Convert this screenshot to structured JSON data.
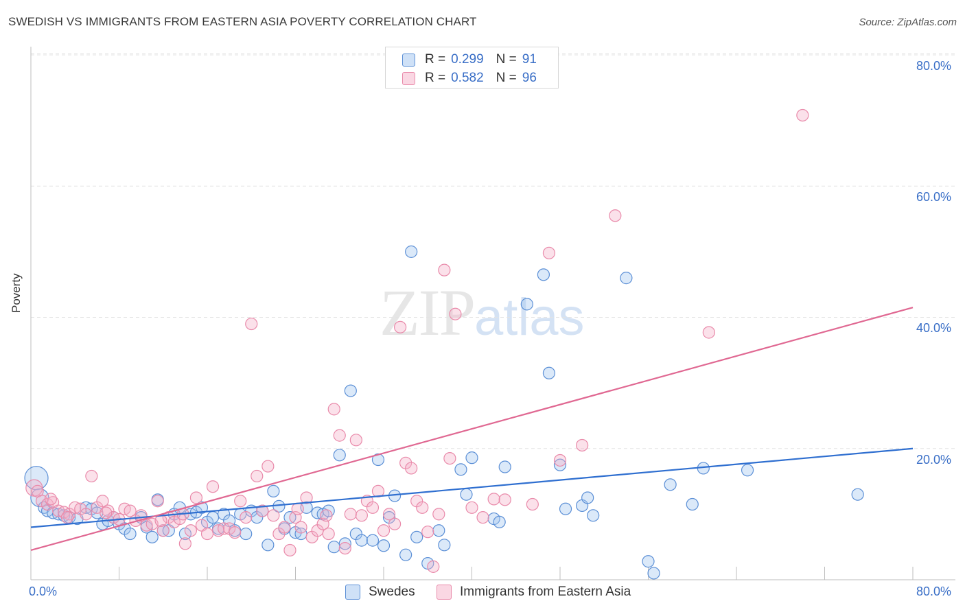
{
  "title": "SWEDISH VS IMMIGRANTS FROM EASTERN ASIA POVERTY CORRELATION CHART",
  "source": "Source: ZipAtlas.com",
  "watermark": {
    "zip": "ZIP",
    "atlas": "atlas"
  },
  "colors": {
    "swedes_fill": "rgba(160,196,240,0.38)",
    "swedes_stroke": "#5b8fd6",
    "swedes_line": "#2f6fd0",
    "asia_fill": "rgba(245,175,200,0.38)",
    "asia_stroke": "#e98aaa",
    "asia_line": "#e06892",
    "tick_color": "#3a6fc7",
    "grid": "#e3e3e3"
  },
  "legend_top": {
    "rows": [
      {
        "r_label": "R =",
        "r_value": "0.299",
        "n_label": "N =",
        "n_value": "91"
      },
      {
        "r_label": "R =",
        "r_value": "0.582",
        "n_label": "N =",
        "n_value": "96"
      }
    ]
  },
  "legend_bottom": {
    "swedes": "Swedes",
    "asia": "Immigrants from Eastern Asia"
  },
  "axes": {
    "ylabel": "Poverty",
    "x_tick_left": "0.0%",
    "x_tick_right": "80.0%",
    "y_ticks": [
      "80.0%",
      "60.0%",
      "40.0%",
      "20.0%"
    ]
  },
  "chart_data": {
    "type": "scatter",
    "title": "SWEDISH VS IMMIGRANTS FROM EASTERN ASIA POVERTY CORRELATION CHART",
    "xlabel": "",
    "ylabel": "Poverty",
    "xlim": [
      0,
      80
    ],
    "ylim": [
      0,
      80
    ],
    "grid": true,
    "legend_placement": "bottom",
    "series": [
      {
        "name": "Swedes",
        "r": 0.299,
        "n": 91,
        "trend": {
          "x": [
            0,
            80
          ],
          "y": [
            8.0,
            20.0
          ]
        },
        "points": [
          [
            0.5,
            15.5
          ],
          [
            0.8,
            12.5
          ],
          [
            1.2,
            11.0
          ],
          [
            1.5,
            10.5
          ],
          [
            2.0,
            10.2
          ],
          [
            2.5,
            10.0
          ],
          [
            3.0,
            9.8
          ],
          [
            3.5,
            9.5
          ],
          [
            4.2,
            9.3
          ],
          [
            5.0,
            11.0
          ],
          [
            5.5,
            10.8
          ],
          [
            6.0,
            10.2
          ],
          [
            6.5,
            8.5
          ],
          [
            7.0,
            9.0
          ],
          [
            7.5,
            9.5
          ],
          [
            8.0,
            8.5
          ],
          [
            8.5,
            7.8
          ],
          [
            9.0,
            7.0
          ],
          [
            10.0,
            9.5
          ],
          [
            10.5,
            8.0
          ],
          [
            11.0,
            6.5
          ],
          [
            11.5,
            12.2
          ],
          [
            12.0,
            7.5
          ],
          [
            12.5,
            7.5
          ],
          [
            13.0,
            10.0
          ],
          [
            13.5,
            11.0
          ],
          [
            14.0,
            7.0
          ],
          [
            14.5,
            10.0
          ],
          [
            15.0,
            10.3
          ],
          [
            15.5,
            11.0
          ],
          [
            16.0,
            8.8
          ],
          [
            16.5,
            9.5
          ],
          [
            17.0,
            7.8
          ],
          [
            17.5,
            10.0
          ],
          [
            18.0,
            9.0
          ],
          [
            18.5,
            7.5
          ],
          [
            19.0,
            10.0
          ],
          [
            19.5,
            7.0
          ],
          [
            20.0,
            10.5
          ],
          [
            20.5,
            9.5
          ],
          [
            21.0,
            10.5
          ],
          [
            21.5,
            5.3
          ],
          [
            22.0,
            13.5
          ],
          [
            22.5,
            11.2
          ],
          [
            23.0,
            7.8
          ],
          [
            23.5,
            9.5
          ],
          [
            24.0,
            7.2
          ],
          [
            24.5,
            7.0
          ],
          [
            25.0,
            11.0
          ],
          [
            26.0,
            10.2
          ],
          [
            26.5,
            10.0
          ],
          [
            27.0,
            10.5
          ],
          [
            27.5,
            5.0
          ],
          [
            28.0,
            19.0
          ],
          [
            28.5,
            5.5
          ],
          [
            29.0,
            28.8
          ],
          [
            29.5,
            7.0
          ],
          [
            30.0,
            6.0
          ],
          [
            31.0,
            6.0
          ],
          [
            31.5,
            18.3
          ],
          [
            32.0,
            5.2
          ],
          [
            32.5,
            9.5
          ],
          [
            33.0,
            12.8
          ],
          [
            34.0,
            3.8
          ],
          [
            34.5,
            50.0
          ],
          [
            35.0,
            6.5
          ],
          [
            36.0,
            2.5
          ],
          [
            37.0,
            7.5
          ],
          [
            37.5,
            5.3
          ],
          [
            39.0,
            16.8
          ],
          [
            39.5,
            13.0
          ],
          [
            40.0,
            18.6
          ],
          [
            42.0,
            9.3
          ],
          [
            42.5,
            8.8
          ],
          [
            43.0,
            17.2
          ],
          [
            45.0,
            42.0
          ],
          [
            46.5,
            46.5
          ],
          [
            47.0,
            31.5
          ],
          [
            48.0,
            17.5
          ],
          [
            48.5,
            10.8
          ],
          [
            50.0,
            11.3
          ],
          [
            50.5,
            12.5
          ],
          [
            51.0,
            9.8
          ],
          [
            54.0,
            46.0
          ],
          [
            56.0,
            2.8
          ],
          [
            56.5,
            1.0
          ],
          [
            58.0,
            14.5
          ],
          [
            60.0,
            11.5
          ],
          [
            65.0,
            16.7
          ],
          [
            75.0,
            13.0
          ],
          [
            61.0,
            17.0
          ]
        ]
      },
      {
        "name": "Immigrants from Eastern Asia",
        "r": 0.582,
        "n": 96,
        "trend": {
          "x": [
            0,
            80
          ],
          "y": [
            4.5,
            41.5
          ]
        },
        "points": [
          [
            0.3,
            14.0
          ],
          [
            0.6,
            13.5
          ],
          [
            1.0,
            12.0
          ],
          [
            1.5,
            11.5
          ],
          [
            2.0,
            11.8
          ],
          [
            2.5,
            10.5
          ],
          [
            3.0,
            10.3
          ],
          [
            3.5,
            10.0
          ],
          [
            4.0,
            11.0
          ],
          [
            4.5,
            10.8
          ],
          [
            5.0,
            10.0
          ],
          [
            5.5,
            15.8
          ],
          [
            6.0,
            11.0
          ],
          [
            6.5,
            12.0
          ],
          [
            7.0,
            10.5
          ],
          [
            7.5,
            9.5
          ],
          [
            8.0,
            9.2
          ],
          [
            8.5,
            10.8
          ],
          [
            9.0,
            10.5
          ],
          [
            9.5,
            9.0
          ],
          [
            10.0,
            9.8
          ],
          [
            10.5,
            8.3
          ],
          [
            11.0,
            8.5
          ],
          [
            11.5,
            12.0
          ],
          [
            12.0,
            7.5
          ],
          [
            12.5,
            9.5
          ],
          [
            13.0,
            8.8
          ],
          [
            13.5,
            9.3
          ],
          [
            14.0,
            5.5
          ],
          [
            14.5,
            7.5
          ],
          [
            15.0,
            12.5
          ],
          [
            15.5,
            8.3
          ],
          [
            16.0,
            7.0
          ],
          [
            16.5,
            14.2
          ],
          [
            17.0,
            7.5
          ],
          [
            17.5,
            7.8
          ],
          [
            18.0,
            7.8
          ],
          [
            18.5,
            7.2
          ],
          [
            19.0,
            12.0
          ],
          [
            19.5,
            9.5
          ],
          [
            20.0,
            39.0
          ],
          [
            20.5,
            15.8
          ],
          [
            21.0,
            10.5
          ],
          [
            21.5,
            17.3
          ],
          [
            22.0,
            9.8
          ],
          [
            22.5,
            7.0
          ],
          [
            23.0,
            8.0
          ],
          [
            23.5,
            4.5
          ],
          [
            24.0,
            9.5
          ],
          [
            24.5,
            8.0
          ],
          [
            25.0,
            12.5
          ],
          [
            25.5,
            6.5
          ],
          [
            26.0,
            7.5
          ],
          [
            26.5,
            8.5
          ],
          [
            27.0,
            7.0
          ],
          [
            27.5,
            26.0
          ],
          [
            28.0,
            22.0
          ],
          [
            28.5,
            4.8
          ],
          [
            29.0,
            10.0
          ],
          [
            29.5,
            21.3
          ],
          [
            30.0,
            9.8
          ],
          [
            30.5,
            12.0
          ],
          [
            31.0,
            11.0
          ],
          [
            31.5,
            13.5
          ],
          [
            32.0,
            7.5
          ],
          [
            32.5,
            10.0
          ],
          [
            33.0,
            8.5
          ],
          [
            33.5,
            38.5
          ],
          [
            34.0,
            17.8
          ],
          [
            34.5,
            17.0
          ],
          [
            35.0,
            12.0
          ],
          [
            35.5,
            11.0
          ],
          [
            36.0,
            7.3
          ],
          [
            36.5,
            2.0
          ],
          [
            37.0,
            10.0
          ],
          [
            37.5,
            47.2
          ],
          [
            38.0,
            18.5
          ],
          [
            38.5,
            40.5
          ],
          [
            40.0,
            11.0
          ],
          [
            41.0,
            9.5
          ],
          [
            42.0,
            12.3
          ],
          [
            43.0,
            12.2
          ],
          [
            47.0,
            49.8
          ],
          [
            48.0,
            18.2
          ],
          [
            50.0,
            20.5
          ],
          [
            53.0,
            55.5
          ],
          [
            61.5,
            37.7
          ],
          [
            70.0,
            70.8
          ],
          [
            45.5,
            11.5
          ],
          [
            26.8,
            9.8
          ],
          [
            24.2,
            10.8
          ],
          [
            13.8,
            10.0
          ],
          [
            11.8,
            9.0
          ],
          [
            6.8,
            10.2
          ],
          [
            3.3,
            9.5
          ],
          [
            1.8,
            12.3
          ]
        ]
      }
    ]
  }
}
